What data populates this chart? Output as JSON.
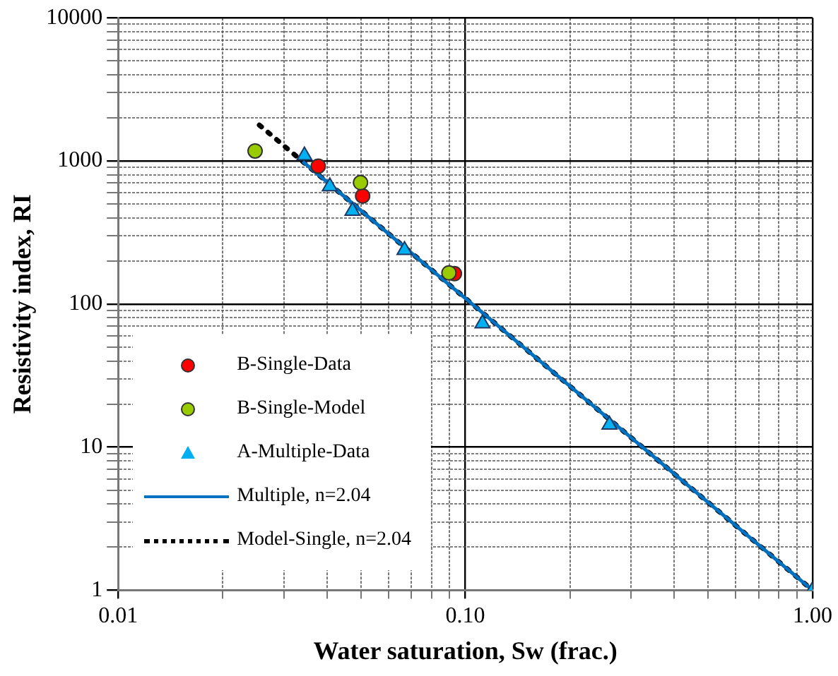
{
  "chart_data": {
    "type": "scatter",
    "xlabel": "Water saturation, Sw (frac.)",
    "ylabel": "Resistivity index, RI",
    "log": "xy",
    "xlim": [
      0.01,
      1
    ],
    "ylim": [
      1,
      10000
    ],
    "xticks": [
      {
        "value": 0.01,
        "label": "0.01"
      },
      {
        "value": 0.02,
        "label": null
      },
      {
        "value": 0.03,
        "label": null
      },
      {
        "value": 0.04,
        "label": null
      },
      {
        "value": 0.05,
        "label": null
      },
      {
        "value": 0.06,
        "label": null
      },
      {
        "value": 0.07,
        "label": null
      },
      {
        "value": 0.08,
        "label": null
      },
      {
        "value": 0.09,
        "label": null
      },
      {
        "value": 0.1,
        "label": "0.10"
      },
      {
        "value": 0.2,
        "label": null
      },
      {
        "value": 0.3,
        "label": null
      },
      {
        "value": 0.4,
        "label": null
      },
      {
        "value": 0.5,
        "label": null
      },
      {
        "value": 0.6,
        "label": null
      },
      {
        "value": 0.7,
        "label": null
      },
      {
        "value": 0.8,
        "label": null
      },
      {
        "value": 0.9,
        "label": null
      },
      {
        "value": 1,
        "label": "1.00"
      }
    ],
    "yticks": [
      1,
      {
        "value": 2,
        "label": null
      },
      {
        "value": 3,
        "label": null
      },
      {
        "value": 4,
        "label": null
      },
      {
        "value": 5,
        "label": null
      },
      {
        "value": 6,
        "label": null
      },
      {
        "value": 7,
        "label": null
      },
      {
        "value": 8,
        "label": null
      },
      {
        "value": 9,
        "label": null
      },
      10,
      {
        "value": 20,
        "label": null
      },
      {
        "value": 30,
        "label": null
      },
      {
        "value": 40,
        "label": null
      },
      {
        "value": 50,
        "label": null
      },
      {
        "value": 60,
        "label": null
      },
      {
        "value": 70,
        "label": null
      },
      {
        "value": 80,
        "label": null
      },
      {
        "value": 90,
        "label": null
      },
      100,
      {
        "value": 200,
        "label": null
      },
      {
        "value": 300,
        "label": null
      },
      {
        "value": 400,
        "label": null
      },
      {
        "value": 500,
        "label": null
      },
      {
        "value": 600,
        "label": null
      },
      {
        "value": 700,
        "label": null
      },
      {
        "value": 800,
        "label": null
      },
      {
        "value": 900,
        "label": null
      },
      1000,
      {
        "value": 2000,
        "label": null
      },
      {
        "value": 3000,
        "label": null
      },
      {
        "value": 4000,
        "label": null
      },
      {
        "value": 5000,
        "label": null
      },
      {
        "value": 6000,
        "label": null
      },
      {
        "value": 7000,
        "label": null
      },
      {
        "value": 8000,
        "label": null
      },
      {
        "value": 9000,
        "label": null
      },
      10000
    ],
    "grid": true,
    "legend": "bottom left",
    "series": [
      {
        "name": "B-Single-Data",
        "type": "scatter",
        "marker": "circle",
        "color": "#ff0000",
        "x": [
          0.0377,
          0.0506,
          0.093
        ],
        "values": [
          919,
          569,
          163
        ]
      },
      {
        "name": "B-Single-Model",
        "type": "scatter",
        "marker": "circle",
        "color": "#99cc00",
        "x": [
          0.0248,
          0.0499,
          0.0897
        ],
        "values": [
          1173,
          705,
          165
        ]
      },
      {
        "name": "A-Multiple-Data",
        "type": "scatter",
        "marker": "triangle",
        "color": "#00b0f0",
        "x": [
          0.0344,
          0.0407,
          0.0473,
          0.0668,
          0.112,
          0.26,
          1
        ],
        "values": [
          1088,
          663,
          447,
          238,
          73,
          14.3,
          1
        ]
      },
      {
        "name": "Multiple, n=2.04",
        "type": "line",
        "marker": "none",
        "line_style": "solid",
        "color": "#0070c0",
        "x": [
          0.034,
          1
        ],
        "values": [
          990,
          1
        ]
      },
      {
        "name": "Model-Single, n=2.04",
        "type": "line",
        "marker": "none",
        "line_style": "dotted",
        "color": "#000000",
        "x": [
          0.0255,
          1
        ],
        "values": [
          1780,
          1
        ]
      }
    ]
  }
}
